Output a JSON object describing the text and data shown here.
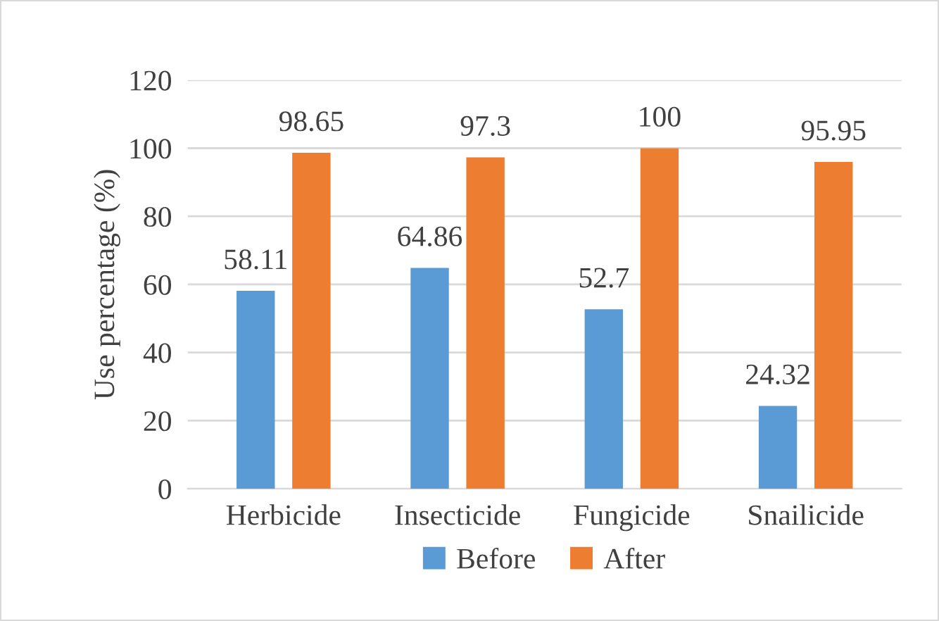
{
  "chart_data": {
    "type": "bar",
    "ylabel": "Use percentage (%)",
    "categories": [
      "Herbicide",
      "Insecticide",
      "Fungicide",
      "Snailicide"
    ],
    "series": [
      {
        "name": "Before",
        "color": "#5b9bd5",
        "values": [
          58.11,
          64.86,
          52.7,
          24.32
        ]
      },
      {
        "name": "After",
        "color": "#ed7d31",
        "values": [
          98.65,
          97.3,
          100,
          95.95
        ]
      }
    ],
    "ylim": [
      0,
      120
    ],
    "yticks": [
      0,
      20,
      40,
      60,
      80,
      100,
      120
    ],
    "grid": "y",
    "legend": "bottom",
    "data_labels": true
  }
}
